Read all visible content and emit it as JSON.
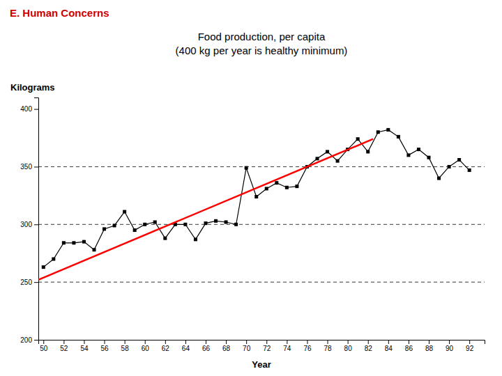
{
  "chart_data": {
    "type": "line",
    "title": "Food production, per capita\n(400 kg per year is healthy minimum)",
    "annotations": [
      {
        "text": "E. Human Concerns",
        "color": "#cc0000"
      }
    ],
    "xlabel": "Year",
    "ylabel": "Kilograms",
    "x": [
      50,
      51,
      52,
      53,
      54,
      55,
      56,
      57,
      58,
      59,
      60,
      61,
      62,
      63,
      64,
      65,
      66,
      67,
      68,
      69,
      70,
      71,
      72,
      73,
      74,
      75,
      76,
      77,
      78,
      79,
      80,
      81,
      82,
      83,
      84,
      85,
      86,
      87,
      88,
      89,
      90,
      91,
      92
    ],
    "series": [
      {
        "values": [
          263,
          270,
          284,
          284,
          285,
          278,
          296,
          299,
          311,
          295,
          300,
          302,
          288,
          300,
          300,
          287,
          301,
          303,
          302,
          300,
          349,
          324,
          331,
          336,
          332,
          333,
          350,
          357,
          363,
          355,
          365,
          374,
          363,
          380,
          382,
          376,
          360,
          365,
          358,
          340,
          350,
          356,
          347
        ],
        "color": "#000000",
        "marker": "square"
      },
      {
        "x": [
          49.5,
          82.5
        ],
        "values": [
          252,
          374
        ],
        "color": "#ff0000"
      }
    ],
    "hlines": {
      "values": [
        250,
        300,
        350
      ],
      "color": "#000000",
      "line_style": "dashed"
    },
    "xlim": [
      49.5,
      93.5
    ],
    "xticks": [
      50,
      52,
      54,
      56,
      58,
      60,
      62,
      64,
      66,
      68,
      70,
      72,
      74,
      76,
      78,
      80,
      82,
      84,
      86,
      88,
      90,
      92
    ],
    "ylim": [
      200,
      410
    ],
    "yticks": [
      200,
      250,
      300,
      350,
      400
    ]
  }
}
